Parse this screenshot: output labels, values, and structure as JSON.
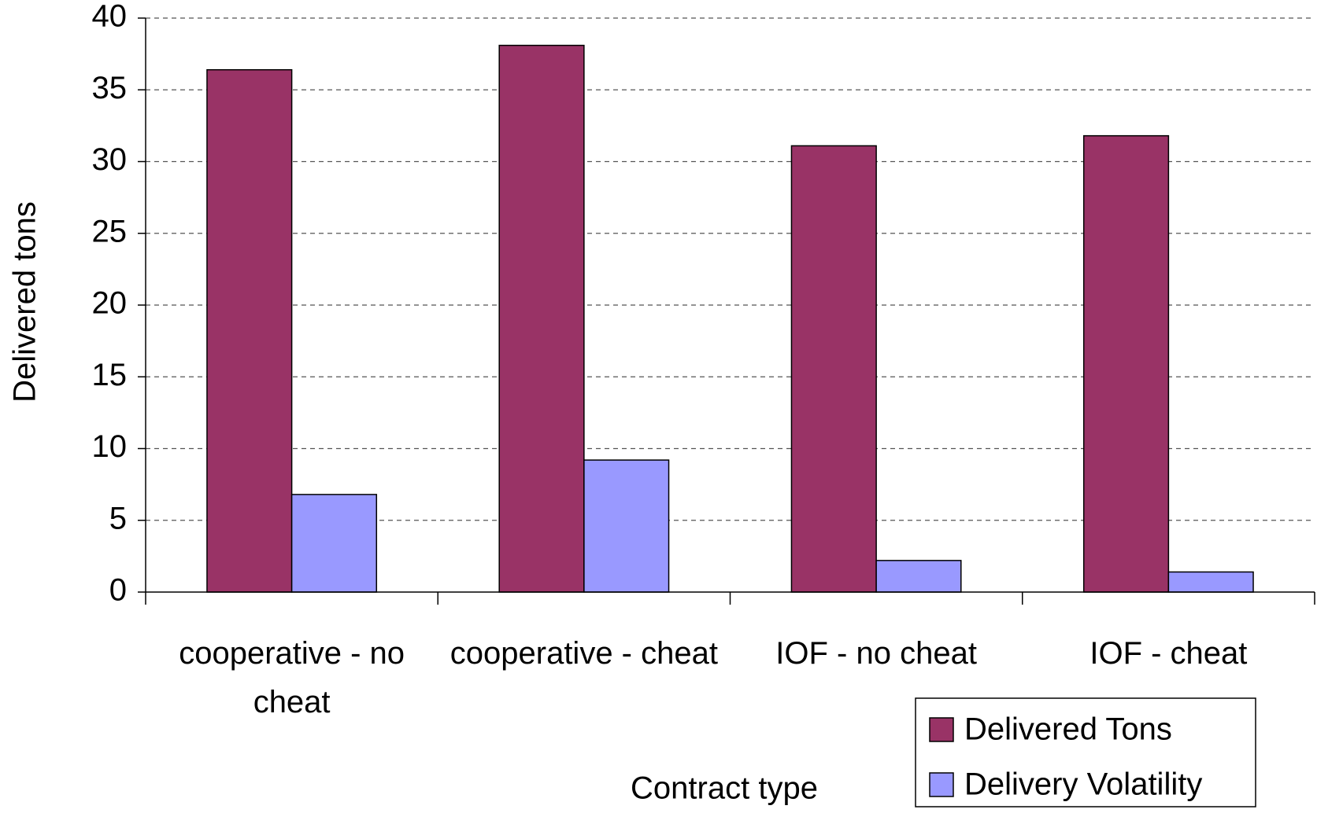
{
  "chart_data": {
    "type": "bar",
    "x_label": "Contract type",
    "y_label": "Delivered tons",
    "categories": [
      "cooperative - no cheat",
      "cooperative - cheat",
      "IOF - no cheat",
      "IOF - cheat"
    ],
    "series": [
      {
        "name": "Delivered Tons",
        "color": "#993366",
        "values": [
          36.4,
          38.1,
          31.1,
          31.8
        ]
      },
      {
        "name": "Delivery Volatility",
        "color": "#9999ff",
        "values": [
          6.8,
          9.2,
          2.2,
          1.4
        ]
      }
    ],
    "ylim": [
      0,
      40
    ],
    "yticks": [
      0,
      5,
      10,
      15,
      20,
      25,
      30,
      35,
      40
    ],
    "grid": true,
    "legend": "bottom-right"
  }
}
